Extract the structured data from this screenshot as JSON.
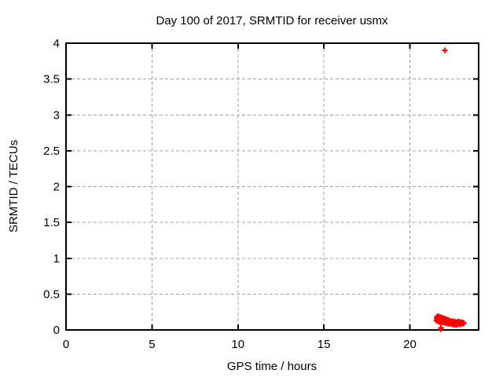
{
  "chart_data": {
    "type": "scatter",
    "title": "Day 100 of 2017, SRMTID for receiver usmx",
    "xlabel": "GPS time / hours",
    "ylabel": "SRMTID / TECUs",
    "xlim": [
      0,
      24
    ],
    "ylim": [
      0,
      4
    ],
    "xticks": [
      0,
      5,
      10,
      15,
      20
    ],
    "yticks": [
      0,
      0.5,
      1,
      1.5,
      2,
      2.5,
      3,
      3.5,
      4
    ],
    "grid": true,
    "legend_position": "none",
    "marker": "plus",
    "marker_color": "#ff0000",
    "grid_color": "#a0a0a0",
    "background_color": "#ffffff",
    "series": [
      {
        "name": "SRMTID",
        "points": [
          [
            22.03,
            3.9
          ],
          [
            21.79,
            0.01
          ],
          [
            21.81,
            0.03
          ],
          [
            21.54,
            0.13
          ],
          [
            21.56,
            0.17
          ],
          [
            21.57,
            0.145
          ],
          [
            21.59,
            0.19
          ],
          [
            21.6,
            0.155
          ],
          [
            21.61,
            0.12
          ],
          [
            21.63,
            0.175
          ],
          [
            21.64,
            0.14
          ],
          [
            21.66,
            0.19
          ],
          [
            21.67,
            0.16
          ],
          [
            21.68,
            0.125
          ],
          [
            21.7,
            0.18
          ],
          [
            21.71,
            0.15
          ],
          [
            21.72,
            0.11
          ],
          [
            21.74,
            0.165
          ],
          [
            21.75,
            0.135
          ],
          [
            21.77,
            0.18
          ],
          [
            21.78,
            0.15
          ],
          [
            21.79,
            0.115
          ],
          [
            21.81,
            0.17
          ],
          [
            21.82,
            0.14
          ],
          [
            21.83,
            0.105
          ],
          [
            21.85,
            0.16
          ],
          [
            21.86,
            0.13
          ],
          [
            21.88,
            0.17
          ],
          [
            21.89,
            0.145
          ],
          [
            21.9,
            0.11
          ],
          [
            21.92,
            0.155
          ],
          [
            21.93,
            0.125
          ],
          [
            21.95,
            0.165
          ],
          [
            21.96,
            0.14
          ],
          [
            21.97,
            0.105
          ],
          [
            21.99,
            0.15
          ],
          [
            22.0,
            0.12
          ],
          [
            22.02,
            0.145
          ],
          [
            22.03,
            0.1
          ],
          [
            22.05,
            0.13
          ],
          [
            22.06,
            0.155
          ],
          [
            22.08,
            0.115
          ],
          [
            22.09,
            0.14
          ],
          [
            22.11,
            0.095
          ],
          [
            22.12,
            0.125
          ],
          [
            22.14,
            0.145
          ],
          [
            22.15,
            0.11
          ],
          [
            22.17,
            0.13
          ],
          [
            22.18,
            0.09
          ],
          [
            22.2,
            0.12
          ],
          [
            22.22,
            0.14
          ],
          [
            22.23,
            0.105
          ],
          [
            22.25,
            0.125
          ],
          [
            22.27,
            0.085
          ],
          [
            22.28,
            0.11
          ],
          [
            22.3,
            0.13
          ],
          [
            22.32,
            0.1
          ],
          [
            22.33,
            0.12
          ],
          [
            22.35,
            0.09
          ],
          [
            22.37,
            0.115
          ],
          [
            22.39,
            0.085
          ],
          [
            22.41,
            0.105
          ],
          [
            22.43,
            0.125
          ],
          [
            22.45,
            0.09
          ],
          [
            22.47,
            0.11
          ],
          [
            22.49,
            0.075
          ],
          [
            22.51,
            0.1
          ],
          [
            22.53,
            0.12
          ],
          [
            22.55,
            0.085
          ],
          [
            22.57,
            0.105
          ],
          [
            22.6,
            0.07
          ],
          [
            22.62,
            0.095
          ],
          [
            22.64,
            0.115
          ],
          [
            22.66,
            0.08
          ],
          [
            22.68,
            0.1
          ],
          [
            22.71,
            0.07
          ],
          [
            22.73,
            0.09
          ],
          [
            22.76,
            0.11
          ],
          [
            22.79,
            0.08
          ],
          [
            22.81,
            0.1
          ],
          [
            22.84,
            0.12
          ],
          [
            22.86,
            0.09
          ],
          [
            22.89,
            0.105
          ],
          [
            22.91,
            0.075
          ],
          [
            22.94,
            0.095
          ],
          [
            22.96,
            0.11
          ],
          [
            22.99,
            0.085
          ],
          [
            23.01,
            0.1
          ],
          [
            23.04,
            0.09
          ],
          [
            23.06,
            0.105
          ],
          [
            23.09,
            0.095
          ],
          [
            23.11,
            0.1
          ],
          [
            23.13,
            0.09
          ]
        ]
      }
    ]
  }
}
